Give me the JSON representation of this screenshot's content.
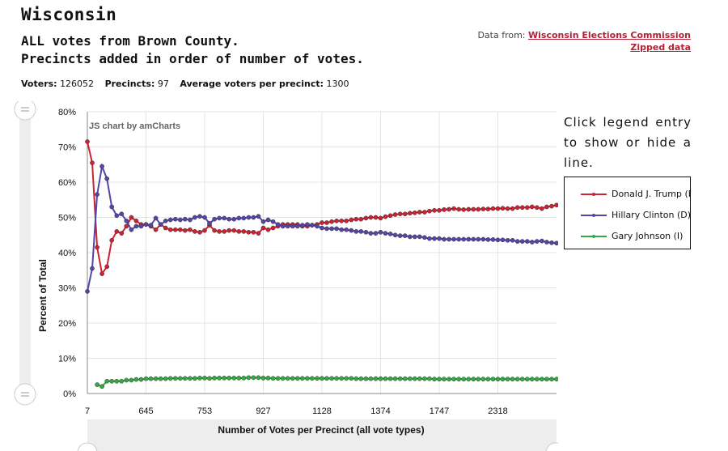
{
  "header": {
    "title": "Wisconsin",
    "subtitle_line1": "ALL votes from Brown County.",
    "subtitle_line2": "Precincts added in order of number of votes.",
    "source_prefix": "Data from:",
    "source_link": "Wisconsin Elections Commission",
    "zip_link": "Zipped data"
  },
  "stats": {
    "voters_label": "Voters:",
    "voters_value": "126052",
    "precincts_label": "Precincts:",
    "precincts_value": "97",
    "avg_label": "Average voters per precinct:",
    "avg_value": "1300"
  },
  "hint": "Click legend entry to show or hide a line.",
  "legend": {
    "items": [
      {
        "label": "Donald J. Trump (R)",
        "color": "#cc2233"
      },
      {
        "label": "Hillary Clinton (D)",
        "color": "#5544aa"
      },
      {
        "label": "Gary Johnson (I)",
        "color": "#33aa44"
      }
    ]
  },
  "colors": {
    "trump": "#cc2233",
    "clinton": "#5544aa",
    "johnson": "#33aa44",
    "grid": "#e4e4e4"
  },
  "chart_data": {
    "type": "line",
    "watermark": "JS chart by amCharts",
    "xlabel": "Number of Votes per Precinct (all vote types)",
    "ylabel": "Percent of Total",
    "ylim": [
      0,
      80
    ],
    "yticks": [
      "0%",
      "10%",
      "20%",
      "30%",
      "40%",
      "50%",
      "60%",
      "70%",
      "80%"
    ],
    "xticks": [
      {
        "index": 0,
        "label": "7"
      },
      {
        "index": 12,
        "label": "645"
      },
      {
        "index": 24,
        "label": "753"
      },
      {
        "index": 36,
        "label": "927"
      },
      {
        "index": 48,
        "label": "1128"
      },
      {
        "index": 60,
        "label": "1374"
      },
      {
        "index": 72,
        "label": "1747"
      },
      {
        "index": 84,
        "label": "2318"
      }
    ],
    "num_points": 97,
    "series": [
      {
        "name": "Donald J. Trump (R)",
        "color": "#cc2233",
        "values": [
          71.5,
          65.5,
          41.5,
          34,
          36,
          43.5,
          46,
          45.5,
          47.5,
          50,
          49,
          48,
          48,
          47.5,
          46.5,
          48,
          47,
          46.5,
          46.5,
          46.5,
          46.3,
          46.5,
          46,
          45.8,
          46.3,
          47.8,
          46.3,
          46,
          46,
          46.3,
          46.3,
          46,
          46,
          45.8,
          45.8,
          45.5,
          47,
          46.5,
          47,
          47.5,
          48,
          48,
          48,
          48,
          47.5,
          47.5,
          47.8,
          48,
          48.5,
          48.5,
          48.8,
          49,
          49,
          49,
          49.3,
          49.5,
          49.5,
          49.8,
          50,
          50,
          49.8,
          50.2,
          50.5,
          50.8,
          51,
          51,
          51.2,
          51.3,
          51.5,
          51.5,
          51.8,
          52,
          52,
          52.2,
          52.3,
          52.5,
          52.3,
          52.2,
          52.3,
          52.3,
          52.3,
          52.4,
          52.4,
          52.5,
          52.5,
          52.6,
          52.5,
          52.5,
          52.8,
          52.8,
          52.8,
          53,
          52.8,
          52.5,
          53,
          53.2,
          53.5
        ]
      },
      {
        "name": "Hillary Clinton (D)",
        "color": "#5544aa",
        "values": [
          29,
          35.5,
          56.5,
          64.5,
          61,
          53,
          50.5,
          51,
          49,
          46.5,
          47.5,
          47.5,
          48,
          47.8,
          49.8,
          48,
          49,
          49.3,
          49.5,
          49.3,
          49.5,
          49.3,
          50,
          50.3,
          50,
          48.3,
          49.5,
          49.8,
          49.8,
          49.5,
          49.5,
          49.8,
          49.8,
          50,
          50,
          50.3,
          48.8,
          49.3,
          48.8,
          48,
          47.5,
          47.5,
          47.5,
          47.5,
          47.8,
          48,
          47.8,
          47.5,
          47,
          46.8,
          46.8,
          46.8,
          46.5,
          46.5,
          46.3,
          46,
          46,
          45.8,
          45.5,
          45.5,
          45.8,
          45.5,
          45.3,
          45,
          44.8,
          44.8,
          44.5,
          44.5,
          44.5,
          44.3,
          44,
          44,
          44,
          43.8,
          43.8,
          43.8,
          43.8,
          43.8,
          43.8,
          43.8,
          43.8,
          43.8,
          43.7,
          43.7,
          43.6,
          43.6,
          43.5,
          43.5,
          43.2,
          43.2,
          43.2,
          43,
          43.2,
          43.3,
          43,
          42.8,
          42.7
        ]
      },
      {
        "name": "Gary Johnson (I)",
        "color": "#33aa44",
        "values": [
          null,
          null,
          2.5,
          2,
          3.5,
          3.5,
          3.5,
          3.5,
          3.8,
          3.8,
          4,
          4,
          4.2,
          4.2,
          4.2,
          4.2,
          4.2,
          4.3,
          4.3,
          4.3,
          4.3,
          4.3,
          4.3,
          4.4,
          4.4,
          4.3,
          4.4,
          4.4,
          4.4,
          4.4,
          4.4,
          4.4,
          4.4,
          4.5,
          4.5,
          4.5,
          4.4,
          4.4,
          4.3,
          4.3,
          4.3,
          4.3,
          4.3,
          4.3,
          4.3,
          4.3,
          4.3,
          4.3,
          4.3,
          4.3,
          4.3,
          4.3,
          4.3,
          4.3,
          4.3,
          4.2,
          4.2,
          4.2,
          4.2,
          4.2,
          4.2,
          4.2,
          4.2,
          4.2,
          4.2,
          4.2,
          4.2,
          4.2,
          4.2,
          4.2,
          4.2,
          4.1,
          4.1,
          4.1,
          4.1,
          4.1,
          4.1,
          4.1,
          4.1,
          4.1,
          4.1,
          4.1,
          4.1,
          4.1,
          4.1,
          4.1,
          4.1,
          4.1,
          4.1,
          4.1,
          4.1,
          4.1,
          4.1,
          4.1,
          4.1,
          4.1,
          4.1
        ]
      }
    ]
  }
}
